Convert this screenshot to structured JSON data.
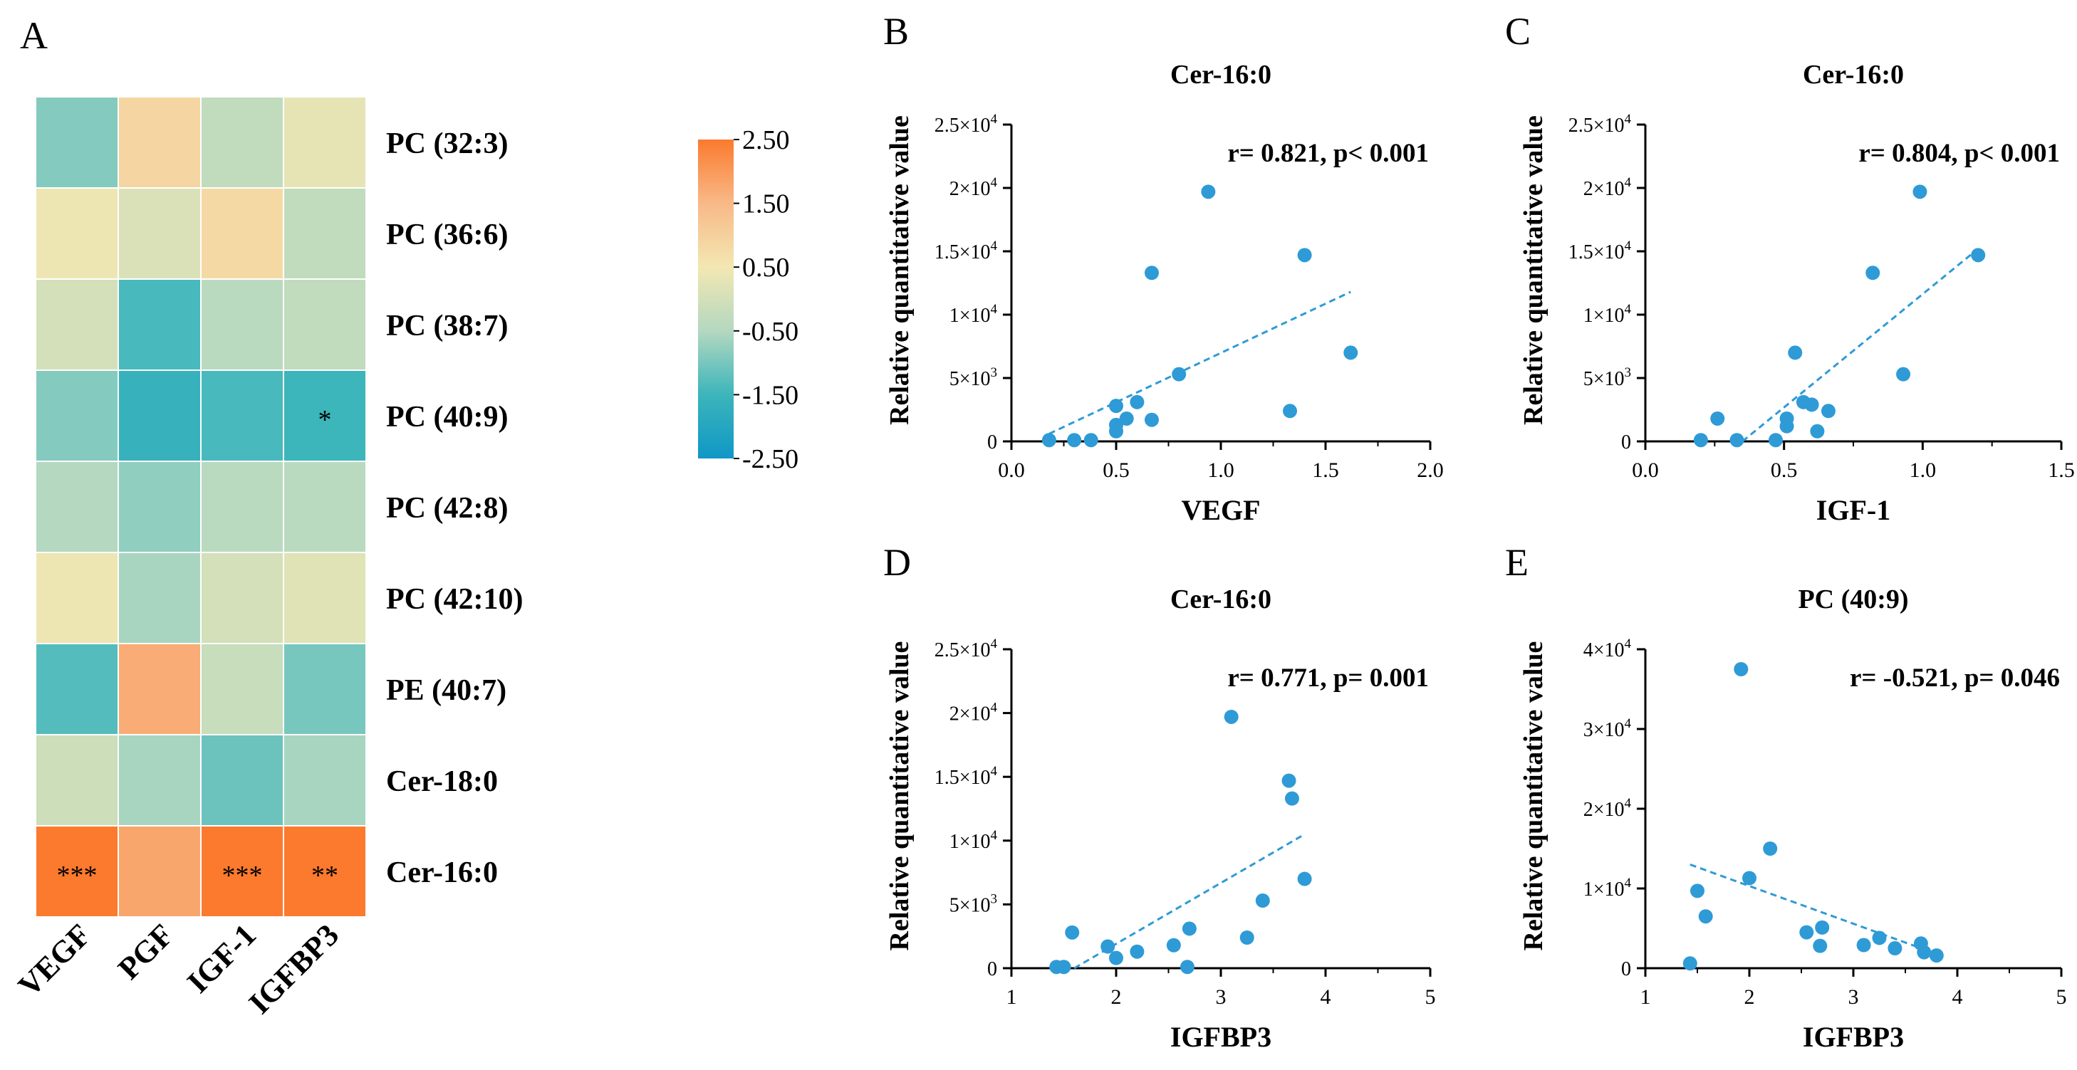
{
  "colors": {
    "line": "#2e9bd6",
    "point": "#2e9bd6",
    "axis": "#000000",
    "text": "#000000",
    "heat_low": "#0f97c6",
    "heat_mid": "#f3e7b2",
    "heat_high": "#fb7a2e"
  },
  "chart_data": [
    {
      "panel": "A",
      "type": "heatmap",
      "rows": [
        "PC (32:3)",
        "PC (36:6)",
        "PC (38:7)",
        "PC (40:9)",
        "PC (42:8)",
        "PC (42:10)",
        "PE (40:7)",
        "Cer-18:0",
        "Cer-16:0"
      ],
      "columns": [
        "VEGF",
        "PGF",
        "IGF-1",
        "IGFBP3"
      ],
      "values": [
        [
          -0.9,
          0.9,
          -0.3,
          0.3
        ],
        [
          0.4,
          0.1,
          0.8,
          -0.3
        ],
        [
          0.0,
          -1.4,
          -0.4,
          -0.3
        ],
        [
          -0.9,
          -1.6,
          -1.4,
          -1.5
        ],
        [
          -0.5,
          -0.8,
          -0.4,
          -0.4
        ],
        [
          0.4,
          -0.6,
          0.0,
          0.2
        ],
        [
          -1.3,
          1.7,
          -0.2,
          -1.0
        ],
        [
          -0.1,
          -0.6,
          -1.1,
          -0.6
        ],
        [
          2.5,
          1.8,
          2.5,
          2.5
        ]
      ],
      "annotations": [
        [
          "",
          "",
          "",
          ""
        ],
        [
          "",
          "",
          "",
          ""
        ],
        [
          "",
          "",
          "",
          ""
        ],
        [
          "",
          "",
          "",
          "*"
        ],
        [
          "",
          "",
          "",
          ""
        ],
        [
          "",
          "",
          "",
          ""
        ],
        [
          "",
          "",
          "",
          ""
        ],
        [
          "",
          "",
          "",
          ""
        ],
        [
          "***",
          "",
          "***",
          "**"
        ]
      ],
      "colorbar": {
        "ticks": [
          "2.50",
          "1.50",
          "0.50",
          "-0.50",
          "-1.50",
          "-2.50"
        ],
        "range": [
          -2.5,
          2.5
        ]
      }
    },
    {
      "panel": "B",
      "type": "scatter",
      "title": "Cer-16:0",
      "xlabel": "VEGF",
      "ylabel": "Relative quantitative value",
      "annotation": "r= 0.821, p< 0.001",
      "xlim": [
        0,
        2
      ],
      "ylim": [
        0,
        25000
      ],
      "xticks": [
        0,
        0.5,
        1,
        1.5,
        2
      ],
      "xtick_labels": [
        "0.0",
        "0.5",
        "1.0",
        "1.5",
        "2.0"
      ],
      "yticks": [
        0,
        5000,
        10000,
        15000,
        20000,
        25000
      ],
      "ytick_labels": [
        [
          "0",
          ""
        ],
        [
          "5×10",
          "3"
        ],
        [
          "1×10",
          "4"
        ],
        [
          "1.5×10",
          "4"
        ],
        [
          "2×10",
          "4"
        ],
        [
          "2.5×10",
          "4"
        ]
      ],
      "points": [
        [
          0.18,
          100
        ],
        [
          0.3,
          100
        ],
        [
          0.38,
          100
        ],
        [
          0.5,
          800
        ],
        [
          0.5,
          1300
        ],
        [
          0.5,
          2800
        ],
        [
          0.55,
          1800
        ],
        [
          0.6,
          3100
        ],
        [
          0.67,
          1700
        ],
        [
          0.67,
          13300
        ],
        [
          0.8,
          5300
        ],
        [
          0.94,
          19700
        ],
        [
          1.33,
          2400
        ],
        [
          1.4,
          14700
        ],
        [
          1.62,
          7000
        ]
      ],
      "fit": [
        [
          0.18,
          600
        ],
        [
          1.62,
          11800
        ]
      ]
    },
    {
      "panel": "C",
      "type": "scatter",
      "title": "Cer-16:0",
      "xlabel": "IGF-1",
      "ylabel": "Relative quantitative value",
      "annotation": "r= 0.804, p< 0.001",
      "xlim": [
        0,
        1.5
      ],
      "ylim": [
        0,
        25000
      ],
      "xticks": [
        0,
        0.5,
        1,
        1.5
      ],
      "xtick_labels": [
        "0.0",
        "0.5",
        "1.0",
        "1.5"
      ],
      "yticks": [
        0,
        5000,
        10000,
        15000,
        20000,
        25000
      ],
      "ytick_labels": [
        [
          "0",
          ""
        ],
        [
          "5×10",
          "3"
        ],
        [
          "1×10",
          "4"
        ],
        [
          "1.5×10",
          "4"
        ],
        [
          "2×10",
          "4"
        ],
        [
          "2.5×10",
          "4"
        ]
      ],
      "points": [
        [
          0.2,
          100
        ],
        [
          0.26,
          1800
        ],
        [
          0.33,
          100
        ],
        [
          0.47,
          100
        ],
        [
          0.51,
          1200
        ],
        [
          0.51,
          1800
        ],
        [
          0.54,
          7000
        ],
        [
          0.57,
          3100
        ],
        [
          0.6,
          2900
        ],
        [
          0.62,
          800
        ],
        [
          0.66,
          2400
        ],
        [
          0.82,
          13300
        ],
        [
          0.93,
          5300
        ],
        [
          0.99,
          19700
        ],
        [
          1.2,
          14700
        ]
      ],
      "fit": [
        [
          0.35,
          0
        ],
        [
          1.2,
          15200
        ]
      ]
    },
    {
      "panel": "D",
      "type": "scatter",
      "title": "Cer-16:0",
      "xlabel": "IGFBP3",
      "ylabel": "Relative quantitative value",
      "annotation": "r= 0.771, p= 0.001",
      "xlim": [
        1,
        5
      ],
      "ylim": [
        0,
        25000
      ],
      "xticks": [
        1,
        2,
        3,
        4,
        5
      ],
      "xtick_labels": [
        "1",
        "2",
        "3",
        "4",
        "5"
      ],
      "yticks": [
        0,
        5000,
        10000,
        15000,
        20000,
        25000
      ],
      "ytick_labels": [
        [
          "0",
          ""
        ],
        [
          "5×10",
          "3"
        ],
        [
          "1×10",
          "4"
        ],
        [
          "1.5×10",
          "4"
        ],
        [
          "2×10",
          "4"
        ],
        [
          "2.5×10",
          "4"
        ]
      ],
      "points": [
        [
          1.43,
          100
        ],
        [
          1.5,
          100
        ],
        [
          1.58,
          2800
        ],
        [
          1.92,
          1700
        ],
        [
          2.0,
          800
        ],
        [
          2.2,
          1300
        ],
        [
          2.55,
          1800
        ],
        [
          2.68,
          100
        ],
        [
          2.7,
          3100
        ],
        [
          3.1,
          19700
        ],
        [
          3.25,
          2400
        ],
        [
          3.4,
          5300
        ],
        [
          3.65,
          14700
        ],
        [
          3.68,
          13300
        ],
        [
          3.8,
          7000
        ]
      ],
      "fit": [
        [
          1.6,
          0
        ],
        [
          3.8,
          10500
        ]
      ]
    },
    {
      "panel": "E",
      "type": "scatter",
      "title": "PC (40:9)",
      "xlabel": "IGFBP3",
      "ylabel": "Relative quantitative value",
      "annotation": "r= -0.521, p= 0.046",
      "xlim": [
        1,
        5
      ],
      "ylim": [
        0,
        40000
      ],
      "xticks": [
        1,
        2,
        3,
        4,
        5
      ],
      "xtick_labels": [
        "1",
        "2",
        "3",
        "4",
        "5"
      ],
      "yticks": [
        0,
        10000,
        20000,
        30000,
        40000
      ],
      "ytick_labels": [
        [
          "0",
          ""
        ],
        [
          "1×10",
          "4"
        ],
        [
          "2×10",
          "4"
        ],
        [
          "3×10",
          "4"
        ],
        [
          "4×10",
          "4"
        ]
      ],
      "points": [
        [
          1.43,
          600
        ],
        [
          1.5,
          9700
        ],
        [
          1.58,
          6500
        ],
        [
          1.92,
          37500
        ],
        [
          2.0,
          11300
        ],
        [
          2.2,
          15000
        ],
        [
          2.55,
          4500
        ],
        [
          2.68,
          2800
        ],
        [
          2.7,
          5100
        ],
        [
          3.1,
          2900
        ],
        [
          3.25,
          3800
        ],
        [
          3.4,
          2500
        ],
        [
          3.65,
          3100
        ],
        [
          3.68,
          2000
        ],
        [
          3.8,
          1600
        ]
      ],
      "fit": [
        [
          1.43,
          13000
        ],
        [
          3.8,
          1800
        ]
      ]
    }
  ],
  "panel_labels": [
    "A",
    "B",
    "C",
    "D",
    "E"
  ]
}
